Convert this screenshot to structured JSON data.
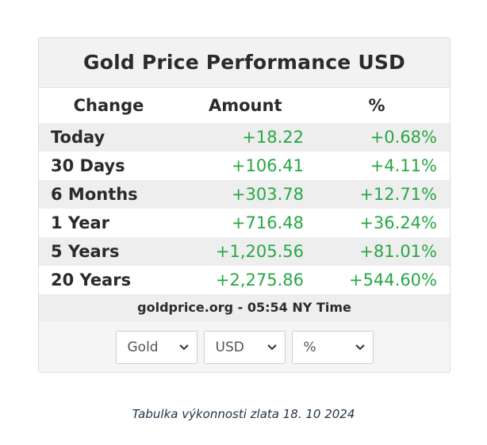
{
  "widget": {
    "title": "Gold Price Performance USD",
    "columns": {
      "change": "Change",
      "amount": "Amount",
      "percent": "%"
    },
    "rows": [
      {
        "period": "Today",
        "amount": "+18.22",
        "percent": "+0.68%"
      },
      {
        "period": "30 Days",
        "amount": "+106.41",
        "percent": "+4.11%"
      },
      {
        "period": "6 Months",
        "amount": "+303.78",
        "percent": "+12.71%"
      },
      {
        "period": "1 Year",
        "amount": "+716.48",
        "percent": "+36.24%"
      },
      {
        "period": "5 Years",
        "amount": "+1,205.56",
        "percent": "+81.01%"
      },
      {
        "period": "20 Years",
        "amount": "+2,275.86",
        "percent": "+544.60%"
      }
    ],
    "source_note": "goldprice.org - 05:54 NY Time",
    "selectors": {
      "metal": "Gold",
      "currency": "USD",
      "unit": "%"
    },
    "colors": {
      "positive": "#27a745",
      "text": "#2b2b2b",
      "row_alt": "#eeeeee"
    }
  },
  "caption": "Tabulka výkonnosti zlata 18. 10 2024",
  "icons": {
    "dropdown": "chevron-down-icon"
  }
}
